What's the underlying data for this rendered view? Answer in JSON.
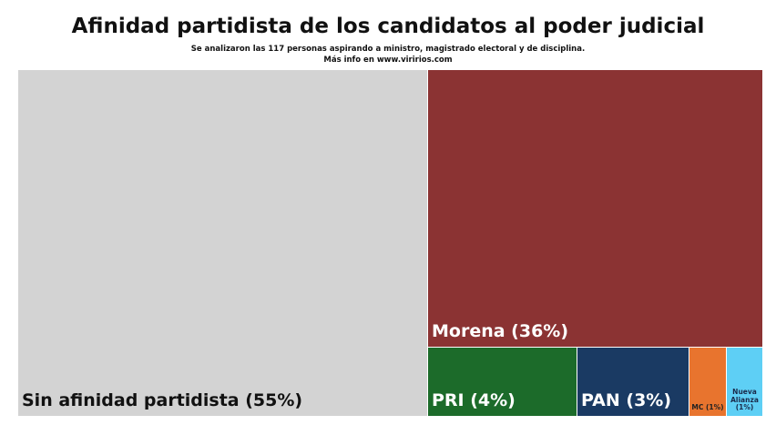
{
  "header": {
    "title": "Afinidad partidista de los candidatos al poder judicial",
    "subtitle_line1": "Se analizaron las 117 personas  aspirando a ministro, magistrado electoral y de disciplina.",
    "subtitle_line2": "Más info en www.viririos.com"
  },
  "chart_data": {
    "type": "treemap",
    "title": "Afinidad partidista de los candidatos al poder judicial",
    "unit": "%",
    "items": [
      {
        "name": "Sin afinidad partidista",
        "label": "Sin afinidad partidista (55%)",
        "value": 55,
        "color": "#d3d3d3",
        "text_color": "#111111"
      },
      {
        "name": "Morena",
        "label": "Morena (36%)",
        "value": 36,
        "color": "#8b3333",
        "text_color": "#ffffff"
      },
      {
        "name": "PRI",
        "label": "PRI (4%)",
        "value": 4,
        "color": "#1c6b2a",
        "text_color": "#ffffff"
      },
      {
        "name": "PAN",
        "label": "PAN (3%)",
        "value": 3,
        "color": "#1a3a63",
        "text_color": "#ffffff"
      },
      {
        "name": "MC",
        "label": "MC (1%)",
        "value": 1,
        "color": "#e8742e",
        "text_color": "#222222"
      },
      {
        "name": "Nueva Alianza",
        "label": "Nueva Alianza (1%)",
        "value": 1,
        "color": "#5ecff5",
        "text_color": "#1a2a4a"
      }
    ]
  }
}
